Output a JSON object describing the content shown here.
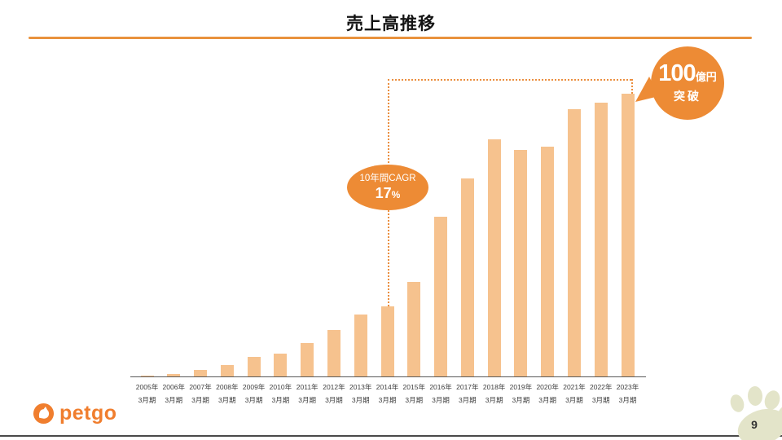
{
  "header": {
    "title": "売上高推移"
  },
  "accent_color": "#ED8B35",
  "chart_data": {
    "type": "bar",
    "title": "売上高推移",
    "unit": "億円",
    "categories": [
      "2005年",
      "2006年",
      "2007年",
      "2008年",
      "2009年",
      "2010年",
      "2011年",
      "2012年",
      "2013年",
      "2014年",
      "2015年",
      "2016年",
      "2017年",
      "2018年",
      "2019年",
      "2020年",
      "2021年",
      "2022年",
      "2023年"
    ],
    "category_sub_label": "3月期",
    "values": [
      0.3,
      1.0,
      2.2,
      4.0,
      6.9,
      8.1,
      11.8,
      16.4,
      21.9,
      24.8,
      33.4,
      56.5,
      70.0,
      84.0,
      80.0,
      81.3,
      94.5,
      96.7,
      100.0
    ],
    "ylim": [
      0,
      100
    ],
    "grid": false,
    "legend": false,
    "bar_color": "#F6C28E",
    "cagr_callout": {
      "label": "10年間CAGR",
      "value": "17",
      "unit": "%",
      "from_category": "2014年",
      "to_category": "2023年"
    },
    "milestone_badge": {
      "value": "100",
      "unit": "億円",
      "caption": "突破"
    }
  },
  "footer": {
    "logo_text": "petgo",
    "page_number": "9"
  }
}
